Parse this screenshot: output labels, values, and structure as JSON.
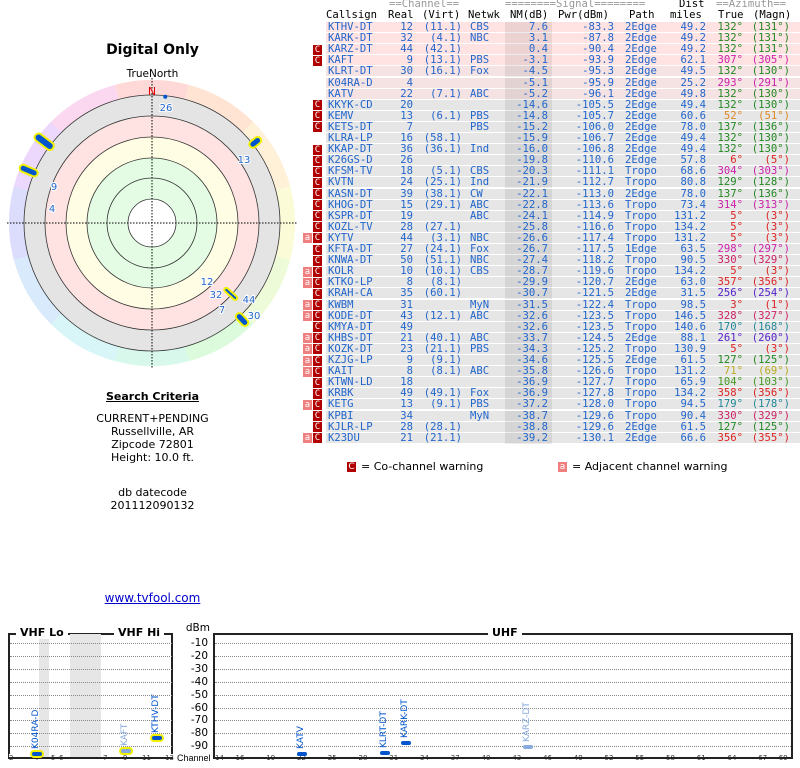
{
  "polar": {
    "title": "Digital Only",
    "north_label": "TrueNorth",
    "n": "N",
    "labels": [
      {
        "ch": "26",
        "az": 6
      },
      {
        "ch": "13",
        "az": 52
      },
      {
        "ch": "9",
        "az": 307
      },
      {
        "ch": "4",
        "az": 293
      },
      {
        "ch": "12",
        "az": 132
      },
      {
        "ch": "32",
        "az": 132
      },
      {
        "ch": "44",
        "az": 132
      },
      {
        "ch": "7",
        "az": 137
      },
      {
        "ch": "30",
        "az": 132
      }
    ]
  },
  "criteria": {
    "heading": "Search Criteria",
    "mode": "CURRENT+PENDING",
    "city": "Russellville, AR",
    "zip": "Zipcode 72801",
    "height": "Height: 10.0 ft.",
    "db_label": "db datecode",
    "db_code": "201112090132"
  },
  "link": "www.tvfool.com",
  "table": {
    "group_channel": "==Channel==",
    "group_signal": "========Signal========",
    "group_dist": "Dist",
    "group_azimuth": "==Azimuth==",
    "cols": {
      "callsign": "Callsign",
      "real": "Real",
      "virt": "(Virt)",
      "netwk": "Netwk",
      "nm": "NM(dB)",
      "pwr": "Pwr(dBm)",
      "path": "Path",
      "miles": "miles",
      "true": "True",
      "magn": "(Magn)"
    },
    "rows": [
      [
        "",
        "",
        "KTHV-DT",
        "12",
        "(11.1)",
        "CBS",
        "7.6",
        "-83.3",
        "2Edge",
        "49.2",
        "132°",
        "(131°)",
        "#228822"
      ],
      [
        "",
        "",
        "KARK-DT",
        "32",
        "(4.1)",
        "NBC",
        "3.1",
        "-87.8",
        "2Edge",
        "49.2",
        "132°",
        "(131°)",
        "#228822"
      ],
      [
        "",
        "C",
        "KARZ-DT",
        "44",
        "(42.1)",
        "",
        "0.4",
        "-90.4",
        "2Edge",
        "49.2",
        "132°",
        "(131°)",
        "#228822"
      ],
      [
        "",
        "C",
        "KAFT",
        "9",
        "(13.1)",
        "PBS",
        "-3.1",
        "-93.9",
        "2Edge",
        "62.1",
        "307°",
        "(305°)",
        "#cc22aa"
      ],
      [
        "",
        "",
        "KLRT-DT",
        "30",
        "(16.1)",
        "Fox",
        "-4.5",
        "-95.3",
        "2Edge",
        "49.5",
        "132°",
        "(130°)",
        "#228822"
      ],
      [
        "",
        "",
        "K04RA-D",
        "4",
        "",
        "",
        "-5.1",
        "-95.9",
        "2Edge",
        "25.2",
        "293°",
        "(291°)",
        "#cc22aa"
      ],
      [
        "",
        "",
        "KATV",
        "22",
        "(7.1)",
        "ABC",
        "-5.2",
        "-96.1",
        "2Edge",
        "49.8",
        "132°",
        "(130°)",
        "#228822"
      ],
      [
        "",
        "C",
        "KKYK-CD",
        "20",
        "",
        "",
        "-14.6",
        "-105.5",
        "2Edge",
        "49.4",
        "132°",
        "(130°)",
        "#228822"
      ],
      [
        "",
        "C",
        "KEMV",
        "13",
        "(6.1)",
        "PBS",
        "-14.8",
        "-105.7",
        "2Edge",
        "60.6",
        "52°",
        "(51°)",
        "#dd8822"
      ],
      [
        "",
        "C",
        "KETS-DT",
        "7",
        "",
        "PBS",
        "-15.2",
        "-106.0",
        "2Edge",
        "78.0",
        "137°",
        "(136°)",
        "#228822"
      ],
      [
        "",
        "",
        "KLRA-LP",
        "16",
        "(58.1)",
        "",
        "-15.9",
        "-106.7",
        "2Edge",
        "49.4",
        "132°",
        "(130°)",
        "#228822"
      ],
      [
        "",
        "C",
        "KKAP-DT",
        "36",
        "(36.1)",
        "Ind",
        "-16.0",
        "-106.8",
        "2Edge",
        "49.4",
        "132°",
        "(130°)",
        "#228822"
      ],
      [
        "",
        "C",
        "K26GS-D",
        "26",
        "",
        "",
        "-19.8",
        "-110.6",
        "2Edge",
        "57.8",
        "6°",
        "(5°)",
        "#dd2222"
      ],
      [
        "",
        "C",
        "KFSM-TV",
        "18",
        "(5.1)",
        "CBS",
        "-20.3",
        "-111.1",
        "Tropo",
        "68.6",
        "304°",
        "(303°)",
        "#cc22aa"
      ],
      [
        "",
        "C",
        "KVTN",
        "24",
        "(25.1)",
        "Ind",
        "-21.9",
        "-112.7",
        "Tropo",
        "80.8",
        "129°",
        "(128°)",
        "#228822"
      ],
      [
        "",
        "C",
        "KASN-DT",
        "39",
        "(38.1)",
        "CW",
        "-22.1",
        "-113.0",
        "2Edge",
        "78.0",
        "137°",
        "(136°)",
        "#228822"
      ],
      [
        "",
        "C",
        "KHOG-DT",
        "15",
        "(29.1)",
        "ABC",
        "-22.8",
        "-113.6",
        "Tropo",
        "73.4",
        "314°",
        "(313°)",
        "#cc22aa"
      ],
      [
        "",
        "C",
        "KSPR-DT",
        "19",
        "",
        "ABC",
        "-24.1",
        "-114.9",
        "Tropo",
        "131.2",
        "5°",
        "(3°)",
        "#dd2222"
      ],
      [
        "",
        "C",
        "KOZL-TV",
        "28",
        "(27.1)",
        "",
        "-25.8",
        "-116.6",
        "Tropo",
        "134.2",
        "5°",
        "(3°)",
        "#dd2222"
      ],
      [
        "a",
        "C",
        "KYTV",
        "44",
        "(3.1)",
        "NBC",
        "-26.6",
        "-117.4",
        "Tropo",
        "131.2",
        "5°",
        "(3°)",
        "#dd2222"
      ],
      [
        "",
        "C",
        "KFTA-DT",
        "27",
        "(24.1)",
        "Fox",
        "-26.7",
        "-117.5",
        "1Edge",
        "63.5",
        "298°",
        "(297°)",
        "#cc22aa"
      ],
      [
        "",
        "C",
        "KNWA-DT",
        "50",
        "(51.1)",
        "NBC",
        "-27.4",
        "-118.2",
        "Tropo",
        "90.5",
        "330°",
        "(329°)",
        "#cc2266"
      ],
      [
        "a",
        "C",
        "KOLR",
        "10",
        "(10.1)",
        "CBS",
        "-28.7",
        "-119.6",
        "Tropo",
        "134.2",
        "5°",
        "(3°)",
        "#dd2222"
      ],
      [
        "a",
        "C",
        "KTKO-LP",
        "8",
        "(8.1)",
        "",
        "-29.9",
        "-120.7",
        "2Edge",
        "63.0",
        "357°",
        "(356°)",
        "#dd2222"
      ],
      [
        "",
        "C",
        "KRAH-CA",
        "35",
        "(60.1)",
        "",
        "-30.7",
        "-121.5",
        "2Edge",
        "31.5",
        "256°",
        "(254°)",
        "#5522cc"
      ],
      [
        "a",
        "C",
        "KWBM",
        "31",
        "",
        "MyN",
        "-31.5",
        "-122.4",
        "Tropo",
        "98.5",
        "3°",
        "(1°)",
        "#dd2222"
      ],
      [
        "a",
        "C",
        "KODE-DT",
        "43",
        "(12.1)",
        "ABC",
        "-32.6",
        "-123.5",
        "Tropo",
        "146.5",
        "328°",
        "(327°)",
        "#cc2266"
      ],
      [
        "",
        "C",
        "KMYA-DT",
        "49",
        "",
        "",
        "-32.6",
        "-123.5",
        "Tropo",
        "140.6",
        "170°",
        "(168°)",
        "#228899"
      ],
      [
        "a",
        "C",
        "KHBS-DT",
        "21",
        "(40.1)",
        "ABC",
        "-33.7",
        "-124.5",
        "2Edge",
        "88.1",
        "261°",
        "(260°)",
        "#5522cc"
      ],
      [
        "a",
        "C",
        "KOZK-DT",
        "23",
        "(21.1)",
        "PBS",
        "-34.3",
        "-125.2",
        "Tropo",
        "130.9",
        "5°",
        "(3°)",
        "#dd2222"
      ],
      [
        "a",
        "C",
        "KZJG-LP",
        "9",
        "(9.1)",
        "",
        "-34.6",
        "-125.5",
        "2Edge",
        "61.5",
        "127°",
        "(125°)",
        "#228822"
      ],
      [
        "a",
        "C",
        "KAIT",
        "8",
        "(8.1)",
        "ABC",
        "-35.8",
        "-126.6",
        "Tropo",
        "131.2",
        "71°",
        "(69°)",
        "#bbaa22"
      ],
      [
        "",
        "C",
        "KTWN-LD",
        "18",
        "",
        "",
        "-36.9",
        "-127.7",
        "Tropo",
        "65.9",
        "104°",
        "(103°)",
        "#449922"
      ],
      [
        "",
        "C",
        "KRBK",
        "49",
        "(49.1)",
        "Fox",
        "-36.9",
        "-127.8",
        "Tropo",
        "134.2",
        "358°",
        "(356°)",
        "#dd2222"
      ],
      [
        "a",
        "C",
        "KETG",
        "13",
        "(9.1)",
        "PBS",
        "-37.2",
        "-128.0",
        "Tropo",
        "94.5",
        "179°",
        "(178°)",
        "#228899"
      ],
      [
        "",
        "C",
        "KPBI",
        "34",
        "",
        "MyN",
        "-38.7",
        "-129.6",
        "Tropo",
        "90.4",
        "330°",
        "(329°)",
        "#cc2266"
      ],
      [
        "",
        "C",
        "KJLR-LP",
        "28",
        "(28.1)",
        "",
        "-38.8",
        "-129.6",
        "2Edge",
        "61.5",
        "127°",
        "(125°)",
        "#228822"
      ],
      [
        "a",
        "C",
        "K23DU",
        "21",
        "(21.1)",
        "",
        "-39.2",
        "-130.1",
        "2Edge",
        "66.6",
        "356°",
        "(355°)",
        "#dd2222"
      ]
    ],
    "legend": {
      "co_flag": "C",
      "co": "= Co-channel warning",
      "adj_flag": "a",
      "adj": "= Adjacent channel warning"
    }
  },
  "spectrum": {
    "sections": {
      "vhf_lo": "VHF Lo",
      "vhf_hi": "VHF Hi",
      "uhf": "UHF"
    },
    "unit": "dBm",
    "channel_label": "Channel",
    "db_ticks": [
      "-10",
      "-20",
      "-30",
      "-40",
      "-50",
      "-60",
      "-70",
      "-80",
      "-90"
    ],
    "vhf_ticks": [
      "2",
      "4",
      "5",
      "6",
      "7",
      "9",
      "11",
      "13"
    ],
    "uhf_ticks": [
      "14",
      "16",
      "19",
      "22",
      "25",
      "28",
      "31",
      "34",
      "37",
      "40",
      "43",
      "46",
      "49",
      "52",
      "55",
      "58",
      "61",
      "64",
      "67",
      "69"
    ],
    "stations": [
      {
        "name": "K04RA-D",
        "ch": 4,
        "dbm": -95.9,
        "strong": true,
        "warn": true
      },
      {
        "name": "KAFT",
        "ch": 9,
        "dbm": -93.9,
        "strong": false,
        "warn": true
      },
      {
        "name": "KTHV-DT",
        "ch": 12,
        "dbm": -83.3,
        "strong": true,
        "warn": true
      },
      {
        "name": "KATV",
        "ch": 22,
        "dbm": -96.1,
        "strong": true,
        "warn": false
      },
      {
        "name": "KLRT-DT",
        "ch": 30,
        "dbm": -95.3,
        "strong": true,
        "warn": false
      },
      {
        "name": "KARK-DT",
        "ch": 32,
        "dbm": -87.8,
        "strong": true,
        "warn": false
      },
      {
        "name": "KARZ-DT",
        "ch": 44,
        "dbm": -90.4,
        "strong": false,
        "warn": false
      }
    ]
  }
}
